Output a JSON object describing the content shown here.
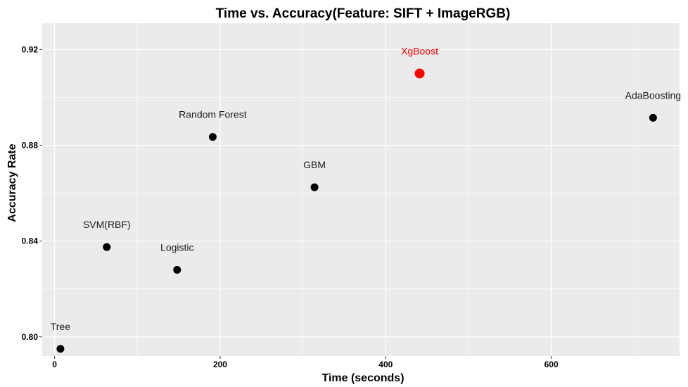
{
  "chart_data": {
    "type": "scatter",
    "title": "Time vs. Accuracy(Feature: SIFT + ImageRGB)",
    "xlabel": "Time (seconds)",
    "ylabel": "Accuracy Rate",
    "xlim": [
      -15,
      755
    ],
    "ylim": [
      0.792,
      0.931
    ],
    "x_ticks": [
      0,
      200,
      400,
      600
    ],
    "y_ticks": [
      0.8,
      0.84,
      0.88,
      0.92
    ],
    "x_tick_labels": [
      "0",
      "200",
      "400",
      "600"
    ],
    "y_tick_labels": [
      "0.80",
      "0.84",
      "0.88",
      "0.92"
    ],
    "grid": true,
    "panel_background": "#ebebeb",
    "grid_color": "#ffffff",
    "point_color": "#000000",
    "highlight_color": "#ff0000",
    "points": [
      {
        "label": "Tree",
        "x": 7,
        "y": 0.795,
        "highlight": false
      },
      {
        "label": "SVM(RBF)",
        "x": 63,
        "y": 0.8375,
        "highlight": false
      },
      {
        "label": "Logistic",
        "x": 148,
        "y": 0.828,
        "highlight": false
      },
      {
        "label": "Random Forest",
        "x": 191,
        "y": 0.8835,
        "highlight": false
      },
      {
        "label": "GBM",
        "x": 314,
        "y": 0.8625,
        "highlight": false
      },
      {
        "label": "XgBoost",
        "x": 441,
        "y": 0.91,
        "highlight": true
      },
      {
        "label": "AdaBoosting",
        "x": 723,
        "y": 0.8915,
        "highlight": false
      }
    ]
  }
}
